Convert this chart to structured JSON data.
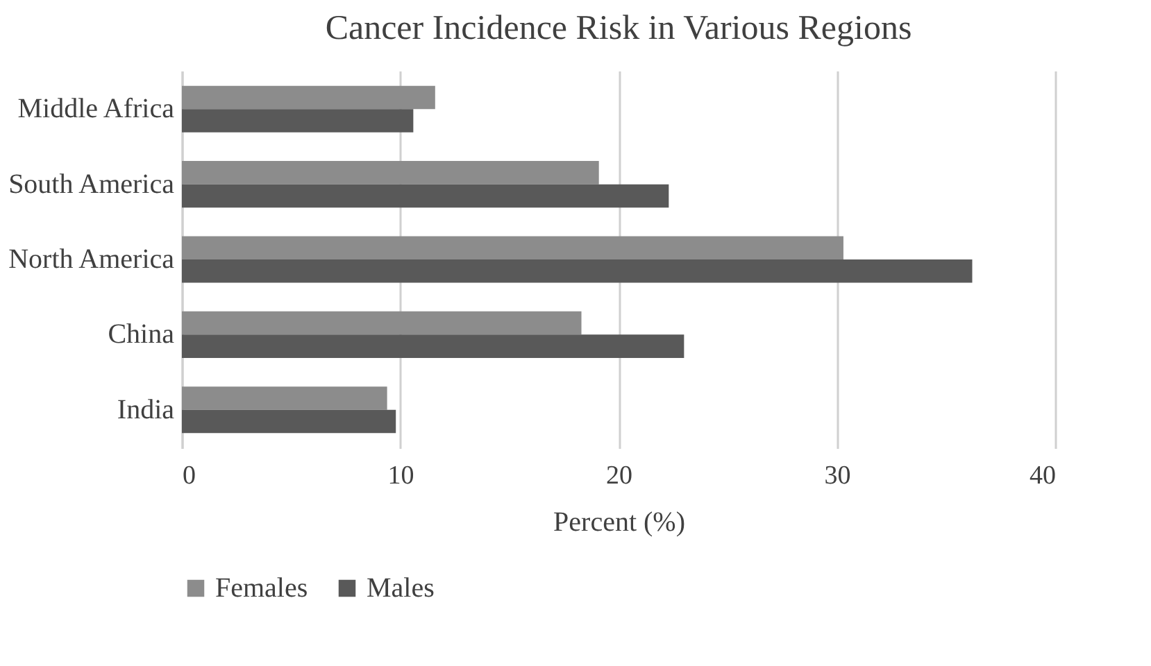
{
  "chart_data": {
    "type": "bar",
    "orientation": "horizontal",
    "title": "Cancer Incidence Risk in Various Regions",
    "xlabel": "Percent (%)",
    "categories": [
      "Middle Africa",
      "South America",
      "North America",
      "China",
      "India"
    ],
    "series": [
      {
        "name": "Females",
        "color": "#8c8c8c",
        "values": [
          11.6,
          19.1,
          30.3,
          18.3,
          9.4
        ]
      },
      {
        "name": "Males",
        "color": "#595959",
        "values": [
          10.6,
          22.3,
          36.2,
          23.0,
          9.8
        ]
      }
    ],
    "xlim": [
      0,
      40
    ],
    "xticks": [
      0,
      10,
      20,
      30,
      40
    ],
    "grid": "x",
    "legend": "bottom"
  }
}
